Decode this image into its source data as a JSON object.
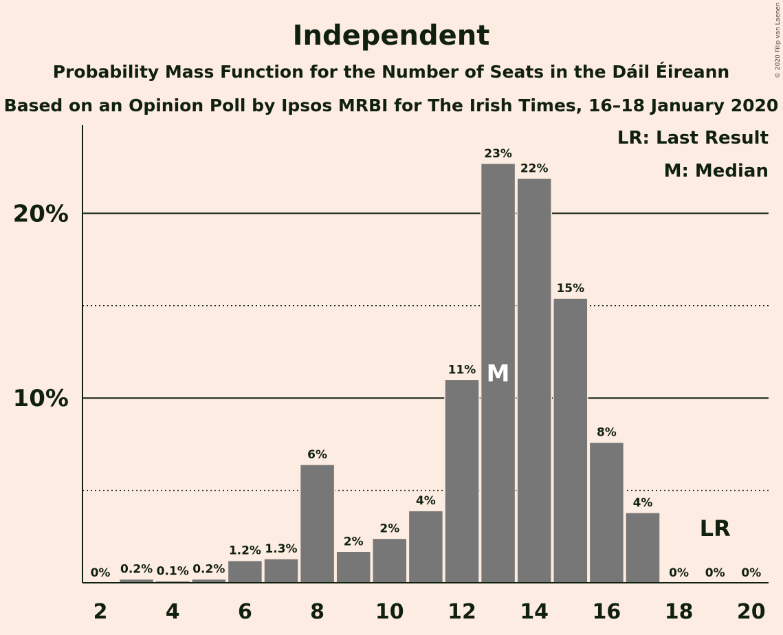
{
  "title": "Independent",
  "subtitle1": "Probability Mass Function for the Number of Seats in the Dáil Éireann",
  "subtitle2": "Based on an Opinion Poll by Ipsos MRBI for The Irish Times, 16–18 January 2020",
  "credit": "© 2020 Filip van Laenen",
  "legend": {
    "last_result": "LR: Last Result",
    "median": "M: Median"
  },
  "markers": {
    "median_label": "M",
    "median_seat": 13,
    "last_result_label": "LR",
    "last_result_seat": 19
  },
  "colors": {
    "background": "#fdece1",
    "bar": "#777777",
    "text": "#102010"
  },
  "chart_data": {
    "type": "bar",
    "title": "Independent",
    "xlabel": "",
    "ylabel": "",
    "x": [
      2,
      3,
      4,
      5,
      6,
      7,
      8,
      9,
      10,
      11,
      12,
      13,
      14,
      15,
      16,
      17,
      18,
      19,
      20
    ],
    "values": [
      0,
      0.2,
      0.1,
      0.2,
      1.2,
      1.3,
      6.4,
      1.7,
      2.4,
      3.9,
      11.0,
      22.7,
      21.9,
      15.4,
      7.6,
      3.8,
      0,
      0,
      0
    ],
    "labels": [
      "0%",
      "0.2%",
      "0.1%",
      "0.2%",
      "1.2%",
      "1.3%",
      "6%",
      "2%",
      "2%",
      "4%",
      "11%",
      "23%",
      "22%",
      "15%",
      "8%",
      "4%",
      "0%",
      "0%",
      "0%"
    ],
    "xticks": [
      "2",
      "4",
      "6",
      "8",
      "10",
      "12",
      "14",
      "16",
      "18",
      "20"
    ],
    "yticks": [
      {
        "value": 10,
        "label": "10%"
      },
      {
        "value": 20,
        "label": "20%"
      }
    ],
    "minor_gridlines": [
      5,
      15
    ],
    "ylim": [
      0,
      25
    ],
    "grid": true,
    "legend_position": "top-right"
  }
}
